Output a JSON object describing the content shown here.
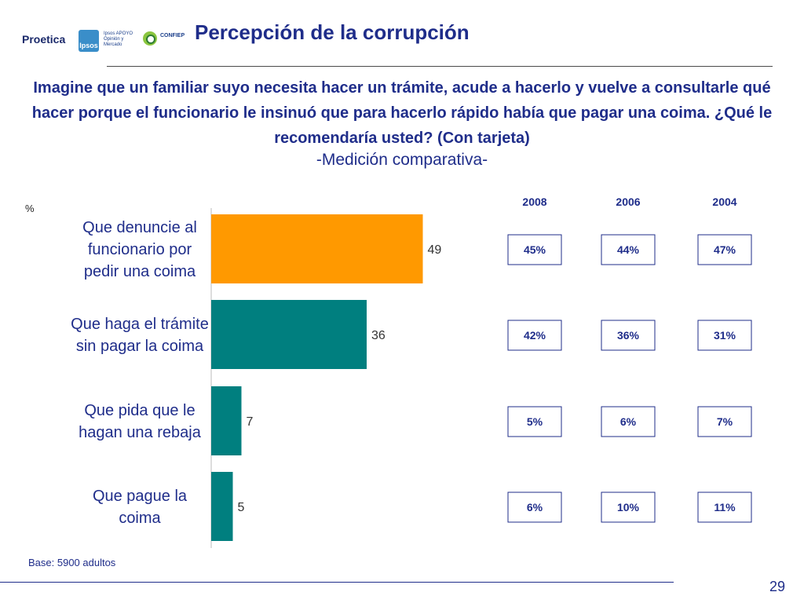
{
  "logos": {
    "proetica_word": "Proetica",
    "ipsos_mark": "Ipsos",
    "ipsos_text": "Ipsos APOYO Opinión y Mercado",
    "confiep_text": "CONFIEP"
  },
  "slide": {
    "title": "Percepción de la corrupción",
    "question": "Imagine que un familiar suyo necesita hacer un trámite, acude a hacerlo y vuelve a consultarle qué hacer porque el funcionario le insinuó que para hacerlo rápido había que pagar una coima. ¿Qué le recomendaría usted? (Con tarjeta)",
    "subtitle": "-Medición comparativa-",
    "unit": "%",
    "base": "Base: 5900 adultos",
    "page_number": "29"
  },
  "colors": {
    "orange": "#ff9900",
    "teal": "#007f7f",
    "navy": "#1f2d8a"
  },
  "chart_data": {
    "type": "bar",
    "orientation": "horizontal",
    "unit": "%",
    "categories": [
      [
        "Que denuncie al",
        "funcionario por",
        "pedir una coima"
      ],
      [
        "Que haga el trámite",
        "sin pagar la coima"
      ],
      [
        "Que pida que le",
        "hagan una rebaja"
      ],
      [
        "Que pague la",
        "coima"
      ]
    ],
    "values": [
      49,
      36,
      7,
      5
    ],
    "bar_colors": [
      "#ff9900",
      "#007f7f",
      "#007f7f",
      "#007f7f"
    ],
    "xlim": [
      0,
      100
    ],
    "comparison": {
      "years": [
        "2008",
        "2006",
        "2004"
      ],
      "values": [
        [
          "45%",
          "44%",
          "47%"
        ],
        [
          "42%",
          "36%",
          "31%"
        ],
        [
          "5%",
          "6%",
          "7%"
        ],
        [
          "6%",
          "10%",
          "11%"
        ]
      ]
    }
  }
}
